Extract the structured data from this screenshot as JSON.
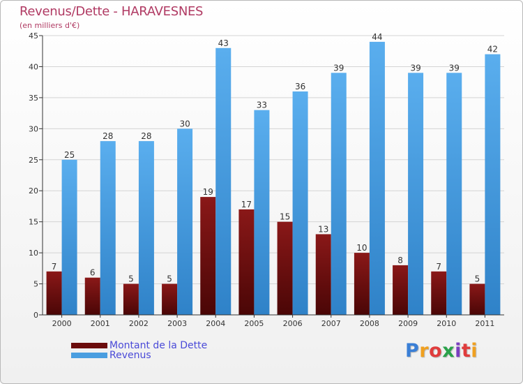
{
  "chart_data": {
    "type": "bar",
    "title": "Revenus/Dette - HARAVESNES",
    "subtitle": "(en milliers d'€)",
    "categories": [
      "2000",
      "2001",
      "2002",
      "2003",
      "2004",
      "2005",
      "2006",
      "2007",
      "2008",
      "2009",
      "2010",
      "2011"
    ],
    "series": [
      {
        "name": "Montant de la Dette",
        "color": "#6b0c0c",
        "values": [
          7,
          6,
          5,
          5,
          19,
          17,
          15,
          13,
          10,
          8,
          7,
          5
        ]
      },
      {
        "name": "Revenus",
        "color": "#4a9ee0",
        "values": [
          25,
          28,
          28,
          30,
          43,
          33,
          36,
          39,
          44,
          39,
          39,
          42
        ]
      }
    ],
    "ylim": [
      0,
      45
    ],
    "yticks": [
      0,
      5,
      10,
      15,
      20,
      25,
      30,
      35,
      40,
      45
    ],
    "grid": true,
    "legend": "bottom-left"
  },
  "branding": {
    "letters": [
      "P",
      "r",
      "o",
      "x",
      "i",
      "t",
      "i"
    ],
    "colors": [
      "#3a7fd6",
      "#f0a020",
      "#e03c3c",
      "#2aa24a",
      "#7a3fc0",
      "#e03c3c",
      "#f0a020"
    ]
  }
}
